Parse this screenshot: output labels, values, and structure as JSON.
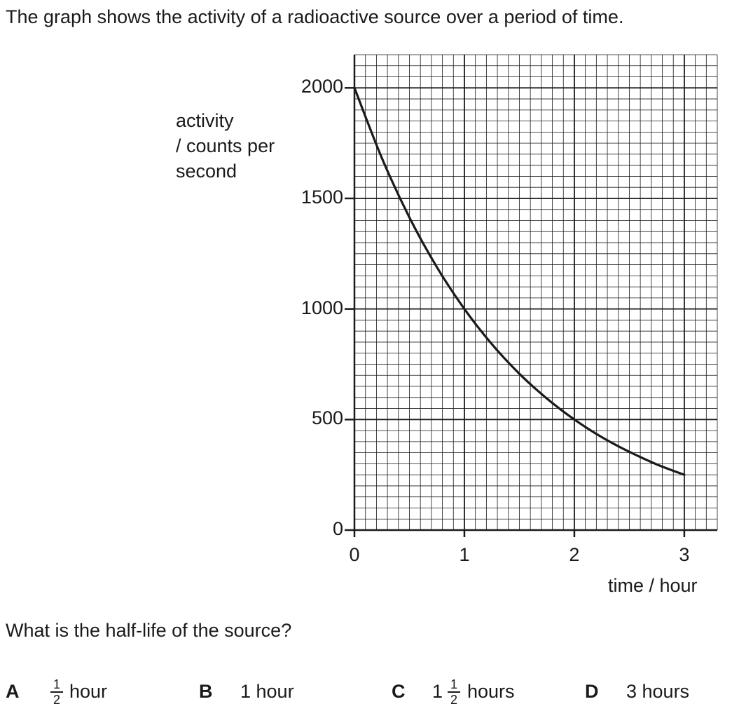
{
  "intro": "The graph shows the activity of a radioactive source over a period of time.",
  "question": "What is the half-life of the source?",
  "chart_data": {
    "type": "line",
    "xlabel": "time / hour",
    "ylabel_lines": [
      "activity",
      "/ counts per",
      "second"
    ],
    "xlim": [
      0,
      3.3
    ],
    "ylim": [
      0,
      2150
    ],
    "x_ticks": [
      0,
      1,
      2,
      3
    ],
    "x_tick_labels": [
      "0",
      "1",
      "2",
      "3"
    ],
    "y_ticks": [
      0,
      500,
      1000,
      1500,
      2000
    ],
    "y_tick_labels": [
      "0",
      "500",
      "1000",
      "1500",
      "2000"
    ],
    "grid": true,
    "series": [
      {
        "x": [
          0,
          0.25,
          0.5,
          0.75,
          1,
          1.25,
          1.5,
          1.75,
          2,
          2.25,
          2.5,
          2.75,
          3
        ],
        "y": [
          2000,
          1682,
          1414,
          1189,
          1000,
          841,
          707,
          595,
          500,
          420,
          354,
          297,
          250
        ]
      }
    ]
  },
  "options": [
    {
      "letter": "A",
      "prefix": "",
      "frac_num": "1",
      "frac_den": "2",
      "text": "hour"
    },
    {
      "letter": "B",
      "prefix": "",
      "frac_num": "",
      "frac_den": "",
      "text": "1 hour"
    },
    {
      "letter": "C",
      "prefix": "1",
      "frac_num": "1",
      "frac_den": "2",
      "text": "hours"
    },
    {
      "letter": "D",
      "prefix": "",
      "frac_num": "",
      "frac_den": "",
      "text": "3 hours"
    }
  ],
  "colors": {
    "ink": "#1a1a1a",
    "grid": "#1a1a1a"
  }
}
